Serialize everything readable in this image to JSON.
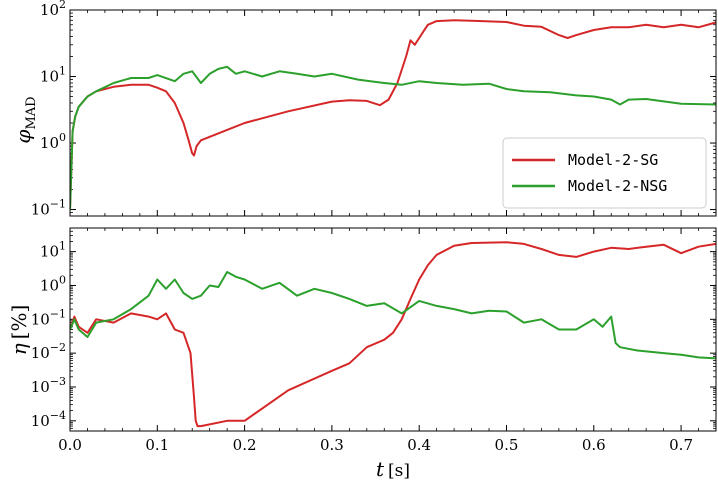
{
  "chart_data": [
    {
      "type": "line",
      "panel": "top",
      "ylabel": "φ_MAD",
      "ylabel_main": "φ",
      "ylabel_sub": "MAD",
      "yscale": "log",
      "ylim": [
        0.08,
        100
      ],
      "xlim": [
        0.0,
        0.74
      ],
      "yticks": [
        {
          "value": 0.1,
          "base": "10",
          "exp": "−1"
        },
        {
          "value": 1,
          "base": "10",
          "exp": "0"
        },
        {
          "value": 10,
          "base": "10",
          "exp": "1"
        },
        {
          "value": 100,
          "base": "10",
          "exp": "2"
        }
      ],
      "legend": {
        "placement": "lower-right",
        "entries": [
          "Model-2-SG",
          "Model-2-NSG"
        ]
      },
      "grid": false,
      "series": [
        {
          "name": "Model-2-SG",
          "color": "#d62728",
          "x": [
            0.0,
            0.003,
            0.006,
            0.01,
            0.02,
            0.03,
            0.05,
            0.07,
            0.09,
            0.1,
            0.11,
            0.12,
            0.13,
            0.135,
            0.14,
            0.142,
            0.145,
            0.15,
            0.2,
            0.25,
            0.3,
            0.32,
            0.34,
            0.355,
            0.365,
            0.375,
            0.385,
            0.39,
            0.395,
            0.4,
            0.405,
            0.41,
            0.42,
            0.44,
            0.46,
            0.5,
            0.52,
            0.54,
            0.56,
            0.57,
            0.58,
            0.6,
            0.62,
            0.64,
            0.66,
            0.68,
            0.7,
            0.72,
            0.74
          ],
          "y": [
            0.1,
            1.5,
            2.5,
            3.5,
            5.0,
            6.0,
            7.0,
            7.5,
            7.5,
            6.8,
            6.0,
            4.0,
            2.0,
            1.2,
            0.7,
            0.65,
            0.9,
            1.1,
            2.0,
            3.0,
            4.2,
            4.4,
            4.3,
            3.7,
            4.5,
            8.0,
            20.0,
            35.0,
            30.0,
            38.0,
            48.0,
            60.0,
            68.0,
            70.0,
            69.0,
            66.0,
            58.0,
            56.0,
            42.0,
            38.0,
            42.0,
            50.0,
            55.0,
            55.0,
            60.0,
            55.0,
            60.0,
            55.0,
            65.0
          ]
        },
        {
          "name": "Model-2-NSG",
          "color": "#2ca02c",
          "x": [
            0.0,
            0.003,
            0.006,
            0.01,
            0.02,
            0.03,
            0.05,
            0.07,
            0.09,
            0.1,
            0.12,
            0.13,
            0.14,
            0.15,
            0.16,
            0.17,
            0.18,
            0.19,
            0.2,
            0.22,
            0.24,
            0.26,
            0.28,
            0.3,
            0.33,
            0.36,
            0.38,
            0.4,
            0.42,
            0.45,
            0.48,
            0.5,
            0.52,
            0.55,
            0.58,
            0.6,
            0.62,
            0.63,
            0.64,
            0.66,
            0.7,
            0.74
          ],
          "y": [
            0.1,
            1.5,
            2.5,
            3.5,
            5.0,
            6.0,
            8.0,
            9.5,
            9.5,
            10.5,
            8.5,
            11.0,
            12.0,
            8.0,
            11.0,
            13.0,
            14.0,
            11.0,
            12.0,
            10.0,
            12.0,
            11.0,
            10.0,
            11.0,
            9.0,
            8.0,
            7.5,
            8.5,
            8.0,
            7.5,
            7.8,
            6.5,
            6.0,
            5.8,
            5.2,
            5.0,
            4.5,
            3.8,
            4.5,
            4.6,
            3.9,
            3.8
          ]
        }
      ]
    },
    {
      "type": "line",
      "panel": "bottom",
      "ylabel": "η [%]",
      "ylabel_main": "η",
      "ylabel_unit": "[%]",
      "xlabel": "t [s]",
      "xlabel_main": "t",
      "xlabel_unit": "[s]",
      "yscale": "log",
      "ylim": [
        5e-05,
        50
      ],
      "xlim": [
        0.0,
        0.74
      ],
      "xticks": [
        "0.0",
        "0.1",
        "0.2",
        "0.3",
        "0.4",
        "0.5",
        "0.6",
        "0.7"
      ],
      "yticks": [
        {
          "value": 0.0001,
          "base": "10",
          "exp": "−4"
        },
        {
          "value": 0.001,
          "base": "10",
          "exp": "−3"
        },
        {
          "value": 0.01,
          "base": "10",
          "exp": "−2"
        },
        {
          "value": 0.1,
          "base": "10",
          "exp": "−1"
        },
        {
          "value": 1,
          "base": "10",
          "exp": "0"
        },
        {
          "value": 10,
          "base": "10",
          "exp": "1"
        }
      ],
      "grid": false,
      "series": [
        {
          "name": "Model-2-SG",
          "color": "#d62728",
          "x": [
            0.0,
            0.005,
            0.01,
            0.02,
            0.03,
            0.05,
            0.07,
            0.09,
            0.1,
            0.11,
            0.12,
            0.13,
            0.138,
            0.142,
            0.144,
            0.146,
            0.15,
            0.18,
            0.2,
            0.25,
            0.3,
            0.32,
            0.34,
            0.36,
            0.37,
            0.38,
            0.39,
            0.4,
            0.41,
            0.42,
            0.44,
            0.46,
            0.5,
            0.52,
            0.54,
            0.56,
            0.58,
            0.6,
            0.62,
            0.64,
            0.66,
            0.68,
            0.7,
            0.72,
            0.74
          ],
          "y": [
            0.05,
            0.12,
            0.06,
            0.04,
            0.1,
            0.08,
            0.15,
            0.12,
            0.1,
            0.15,
            0.05,
            0.04,
            0.01,
            0.0005,
            0.0001,
            7e-05,
            7e-05,
            0.0001,
            0.0001,
            0.0008,
            0.003,
            0.005,
            0.015,
            0.025,
            0.04,
            0.1,
            0.4,
            1.5,
            4.0,
            8.0,
            15.0,
            18.0,
            19.0,
            17.0,
            12.0,
            8.0,
            7.0,
            10.0,
            13.0,
            12.0,
            14.0,
            16.0,
            9.0,
            14.0,
            17.0
          ]
        },
        {
          "name": "Model-2-NSG",
          "color": "#2ca02c",
          "x": [
            0.0,
            0.005,
            0.01,
            0.02,
            0.03,
            0.05,
            0.07,
            0.09,
            0.1,
            0.11,
            0.12,
            0.13,
            0.14,
            0.15,
            0.16,
            0.17,
            0.18,
            0.19,
            0.2,
            0.22,
            0.24,
            0.26,
            0.28,
            0.3,
            0.32,
            0.34,
            0.36,
            0.38,
            0.4,
            0.42,
            0.44,
            0.46,
            0.48,
            0.5,
            0.52,
            0.54,
            0.56,
            0.58,
            0.6,
            0.61,
            0.62,
            0.625,
            0.63,
            0.65,
            0.68,
            0.7,
            0.72,
            0.74
          ],
          "y": [
            0.05,
            0.1,
            0.05,
            0.03,
            0.08,
            0.1,
            0.2,
            0.5,
            1.5,
            0.8,
            1.5,
            0.6,
            0.4,
            0.5,
            1.0,
            0.9,
            2.5,
            1.8,
            1.5,
            0.8,
            1.2,
            0.5,
            0.8,
            0.6,
            0.4,
            0.25,
            0.3,
            0.15,
            0.35,
            0.25,
            0.2,
            0.15,
            0.18,
            0.17,
            0.08,
            0.1,
            0.05,
            0.05,
            0.1,
            0.06,
            0.12,
            0.02,
            0.015,
            0.012,
            0.01,
            0.009,
            0.0075,
            0.007
          ]
        }
      ]
    }
  ]
}
